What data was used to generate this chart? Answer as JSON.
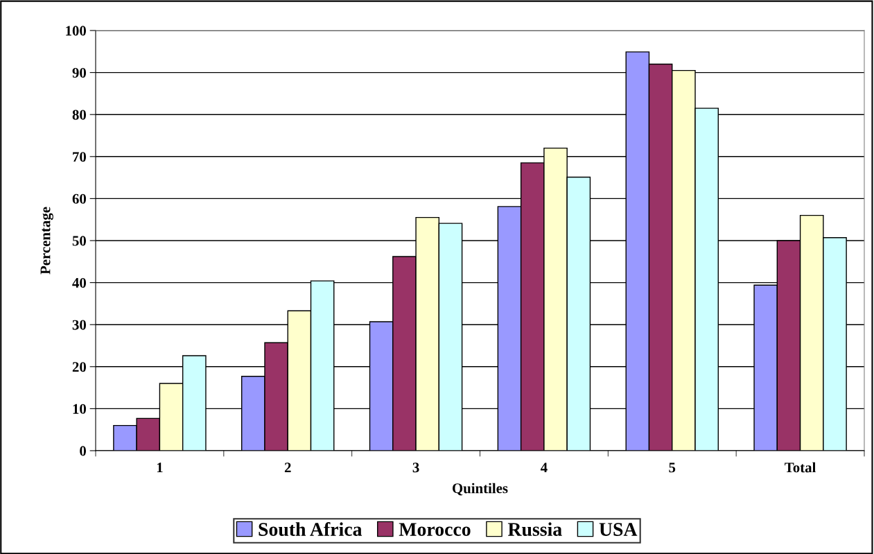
{
  "chart_data": {
    "type": "bar",
    "xlabel": "Quintiles",
    "ylabel": "Percentage",
    "categories": [
      "1",
      "2",
      "3",
      "4",
      "5",
      "Total"
    ],
    "series": [
      {
        "name": "South Africa",
        "color": "#9999ff",
        "values": [
          6.0,
          17.7,
          30.7,
          58.1,
          94.9,
          39.4
        ]
      },
      {
        "name": "Morocco",
        "color": "#993366",
        "values": [
          7.7,
          25.7,
          46.2,
          68.5,
          92.0,
          50.0
        ]
      },
      {
        "name": "Russia",
        "color": "#ffffcc",
        "values": [
          16.0,
          33.3,
          55.5,
          72.0,
          90.5,
          56.0
        ]
      },
      {
        "name": "USA",
        "color": "#ccffff",
        "values": [
          22.6,
          40.4,
          54.1,
          65.1,
          81.5,
          50.7
        ]
      }
    ],
    "ylim": [
      0,
      100
    ],
    "yticks": [
      0,
      10,
      20,
      30,
      40,
      50,
      60,
      70,
      80,
      90,
      100
    ],
    "grid": "y",
    "legend": "bottom"
  }
}
